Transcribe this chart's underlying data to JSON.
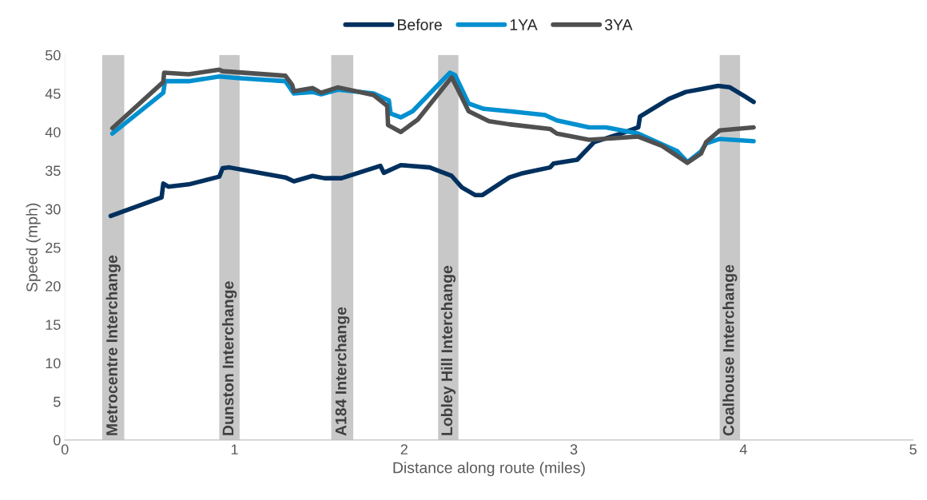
{
  "chart_data": {
    "type": "line",
    "xlabel": "Distance along route (miles)",
    "ylabel": "Speed (mph)",
    "xlim": [
      0,
      5
    ],
    "xticks": [
      0,
      1,
      2,
      3,
      4,
      5
    ],
    "ylim": [
      0,
      50
    ],
    "yticks": [
      0,
      5,
      10,
      15,
      20,
      25,
      30,
      35,
      40,
      45,
      50
    ],
    "grid": false,
    "legend": "top",
    "marker": "none",
    "line_style": "solid",
    "bands": [
      {
        "axis": "x",
        "from": 0.22,
        "to": 0.35,
        "label": "Metrocentre Interchange",
        "color": "#c8c8c8"
      },
      {
        "axis": "x",
        "from": 0.91,
        "to": 1.03,
        "label": "Dunston Interchange",
        "color": "#c8c8c8"
      },
      {
        "axis": "x",
        "from": 1.57,
        "to": 1.7,
        "label": "A184 Interchange",
        "color": "#c8c8c8"
      },
      {
        "axis": "x",
        "from": 2.2,
        "to": 2.32,
        "label": "Lobley Hill Interchange",
        "color": "#c8c8c8"
      },
      {
        "axis": "x",
        "from": 3.86,
        "to": 3.98,
        "label": "Coalhouse Interchange",
        "color": "#c8c8c8"
      }
    ],
    "series": [
      {
        "name": "Before",
        "color": "#00305e",
        "x": [
          0.27,
          0.57,
          0.58,
          0.61,
          0.73,
          0.91,
          0.93,
          0.97,
          1.3,
          1.35,
          1.46,
          1.53,
          1.63,
          1.86,
          1.88,
          1.98,
          2.15,
          2.28,
          2.34,
          2.42,
          2.46,
          2.62,
          2.69,
          2.86,
          2.88,
          3.02,
          3.12,
          3.28,
          3.38,
          3.39,
          3.56,
          3.66,
          3.76,
          3.85,
          3.92,
          4.01,
          4.06
        ],
        "values": [
          29.1,
          31.5,
          33.3,
          32.9,
          33.2,
          34.2,
          35.3,
          35.4,
          34.1,
          33.6,
          34.3,
          34.0,
          34.0,
          35.6,
          34.7,
          35.7,
          35.4,
          34.3,
          32.8,
          31.8,
          31.8,
          34.1,
          34.6,
          35.4,
          35.9,
          36.4,
          38.7,
          39.8,
          40.6,
          42.0,
          44.3,
          45.2,
          45.6,
          46.0,
          45.8,
          44.6,
          43.9
        ]
      },
      {
        "name": "1YA",
        "color": "#0090d0",
        "x": [
          0.28,
          0.58,
          0.59,
          0.73,
          0.91,
          1.02,
          1.3,
          1.35,
          1.46,
          1.51,
          1.61,
          1.82,
          1.91,
          1.92,
          1.98,
          2.05,
          2.27,
          2.3,
          2.38,
          2.47,
          2.62,
          2.83,
          2.9,
          3.09,
          3.19,
          3.38,
          3.61,
          3.67,
          3.75,
          3.78,
          3.86,
          4.06
        ],
        "values": [
          39.8,
          45.1,
          46.6,
          46.6,
          47.2,
          47.0,
          46.6,
          45.0,
          45.2,
          44.9,
          45.5,
          45.0,
          44.1,
          42.4,
          41.9,
          42.7,
          47.7,
          47.4,
          43.7,
          43.0,
          42.7,
          42.2,
          41.5,
          40.6,
          40.6,
          39.8,
          37.5,
          36.1,
          37.5,
          38.5,
          39.1,
          38.8
        ]
      },
      {
        "name": "3YA",
        "color": "#505050",
        "x": [
          0.28,
          0.58,
          0.585,
          0.73,
          0.91,
          0.93,
          1.3,
          1.34,
          1.35,
          1.46,
          1.51,
          1.61,
          1.82,
          1.9,
          1.905,
          1.98,
          2.08,
          2.28,
          2.31,
          2.38,
          2.5,
          2.62,
          2.86,
          2.9,
          3.09,
          3.38,
          3.52,
          3.67,
          3.75,
          3.78,
          3.86,
          4.06
        ],
        "values": [
          40.5,
          46.5,
          47.7,
          47.5,
          48.1,
          47.9,
          47.3,
          46.1,
          45.3,
          45.7,
          45.1,
          45.8,
          44.8,
          43.4,
          40.9,
          40.0,
          41.6,
          47.1,
          45.8,
          42.7,
          41.4,
          41.0,
          40.4,
          39.8,
          39.0,
          39.4,
          38.2,
          36.0,
          37.2,
          38.7,
          40.2,
          40.6
        ]
      }
    ]
  }
}
